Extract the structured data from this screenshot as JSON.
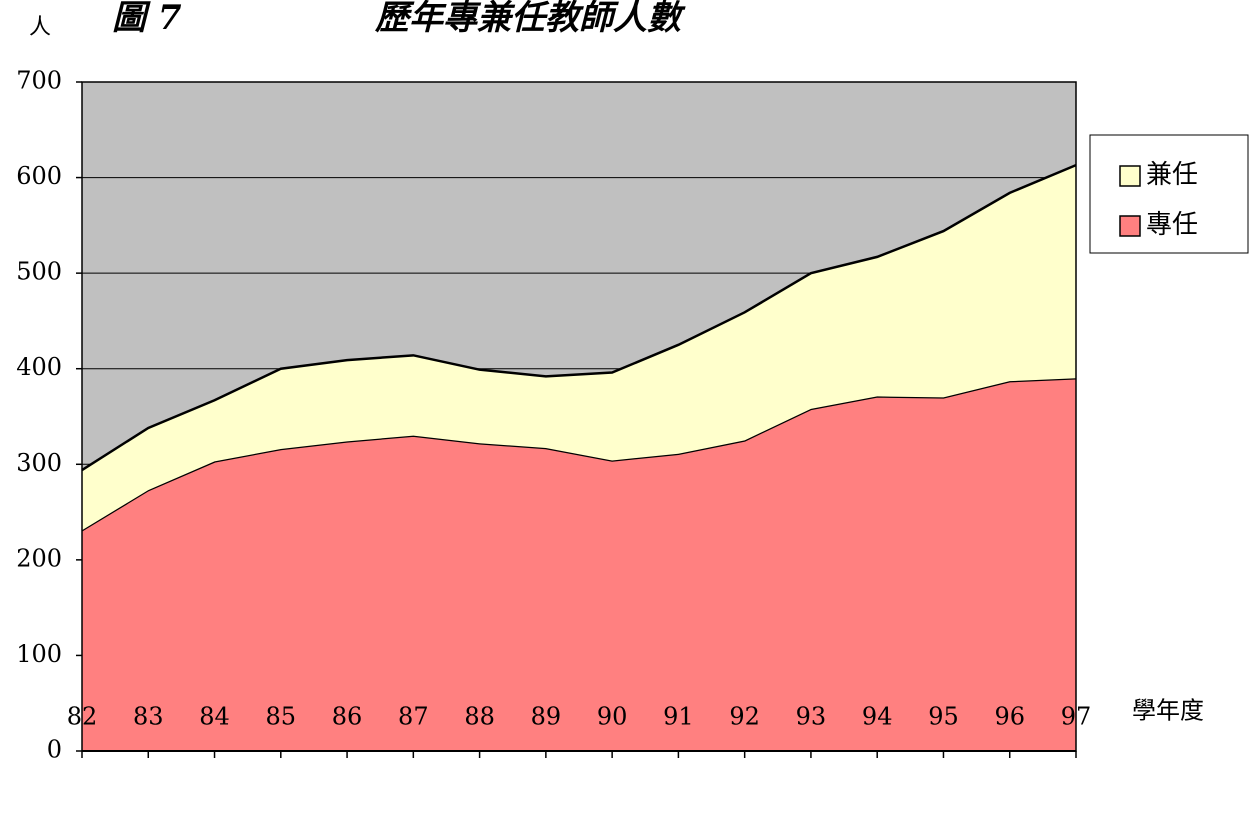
{
  "chart_data": {
    "type": "area",
    "title": "圖 7",
    "subtitle": "歷年專兼任教師人數",
    "y_label": "人",
    "x_label": "學年度",
    "categories": [
      "82",
      "83",
      "84",
      "85",
      "86",
      "87",
      "88",
      "89",
      "90",
      "91",
      "92",
      "93",
      "94",
      "95",
      "96",
      "97"
    ],
    "series": [
      {
        "name": "專任",
        "color": "#ff8080",
        "values": [
          231,
          273,
          303,
          316,
          324,
          330,
          322,
          317,
          304,
          311,
          325,
          358,
          371,
          370,
          387,
          390
        ]
      },
      {
        "name": "兼任",
        "color": "#ffffcc",
        "values": [
          63,
          65,
          64,
          84,
          85,
          84,
          77,
          75,
          92,
          114,
          134,
          142,
          146,
          174,
          197,
          223
        ]
      }
    ],
    "stacked": true,
    "ylim": [
      0,
      700
    ],
    "yticks": [
      0,
      100,
      200,
      300,
      400,
      500,
      600,
      700
    ],
    "grid": true,
    "plot_background": "#c0c0c0",
    "legend": "right"
  }
}
